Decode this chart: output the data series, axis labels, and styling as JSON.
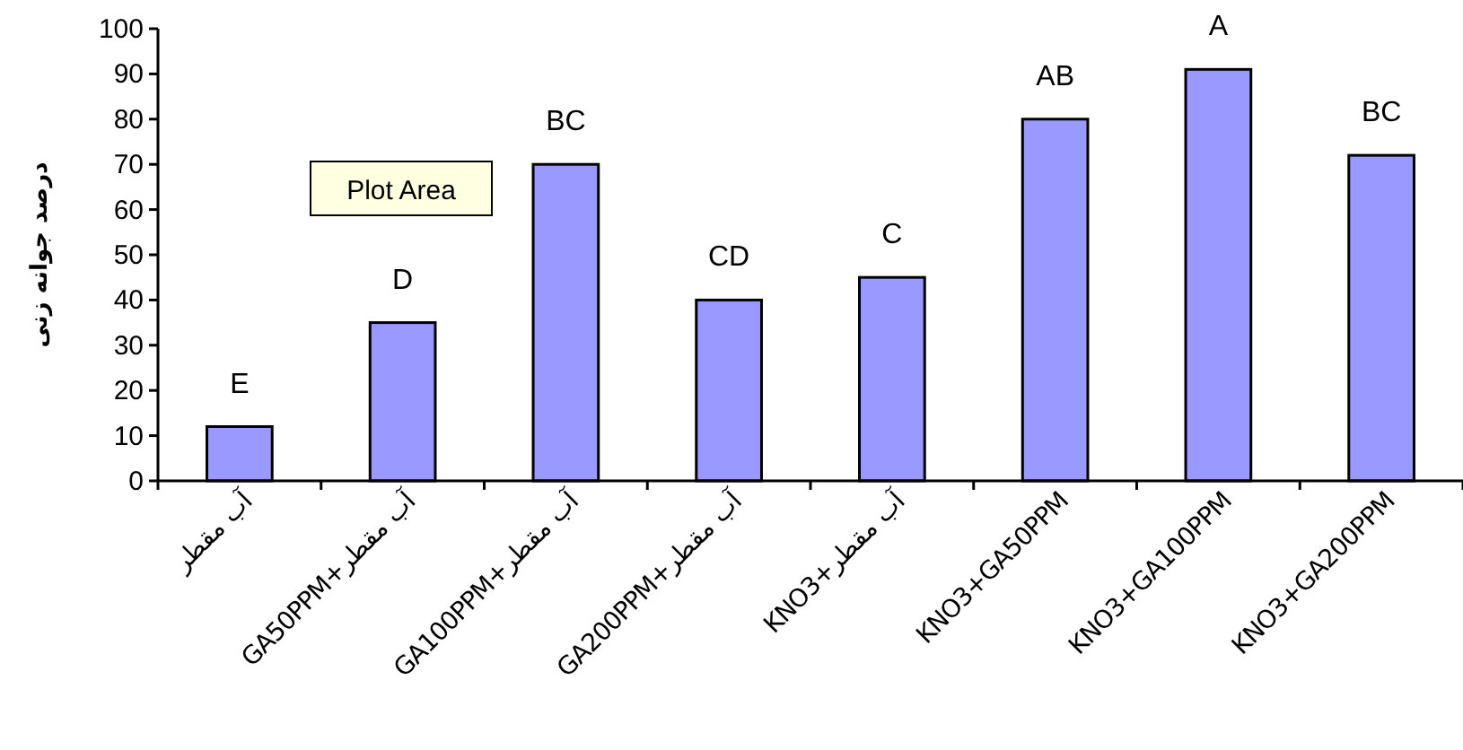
{
  "chart_data": {
    "type": "bar",
    "ylabel": "درصد جوانه زنی",
    "categories": [
      "آب مقطر",
      "GA50PPM+آب مقطر",
      "GA100PPM+آب مقطر",
      "GA200PPM+آب مقطر",
      "KNO3+آب مقطر",
      "KNO3+GA50PPM",
      "KNO3+GA100PPM",
      "KNO3+GA200PPM"
    ],
    "values": [
      12,
      35,
      70,
      40,
      45,
      80,
      91,
      72
    ],
    "color": "#9999ff",
    "ylim": [
      0,
      100
    ],
    "yticks": [
      0,
      10,
      20,
      30,
      40,
      50,
      60,
      70,
      80,
      90,
      100
    ],
    "annotations": [
      {
        "text": "E",
        "x": "آب مقطر",
        "y": 12
      },
      {
        "text": "D",
        "x": "GA50PPM+آب مقطر",
        "y": 35
      },
      {
        "text": "BC",
        "x": "GA100PPM+آب مقطر",
        "y": 70
      },
      {
        "text": "CD",
        "x": "GA200PPM+آب مقطر",
        "y": 40
      },
      {
        "text": "C",
        "x": "KNO3+آب مقطر",
        "y": 45
      },
      {
        "text": "AB",
        "x": "KNO3+GA50PPM",
        "y": 80
      },
      {
        "text": "A",
        "x": "KNO3+GA100PPM",
        "y": 91
      },
      {
        "text": "BC",
        "x": "KNO3+GA200PPM",
        "y": 72
      },
      "Plot Area"
    ]
  }
}
